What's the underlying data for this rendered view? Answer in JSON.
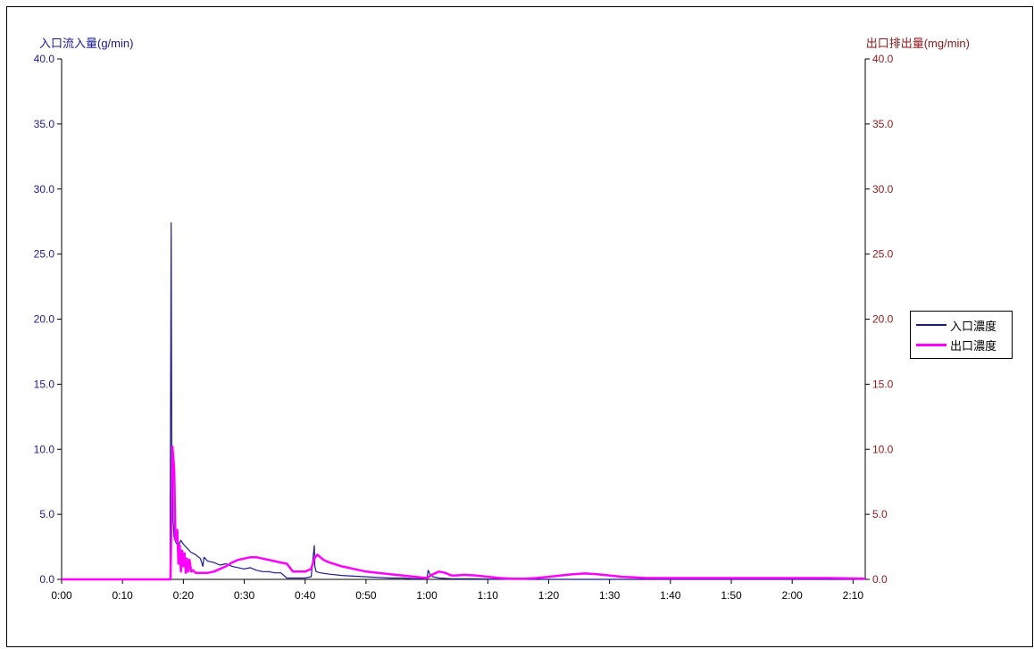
{
  "chart_data": {
    "type": "line",
    "yaxis_left": {
      "label": "入口流入量(g/min)",
      "ticks": [
        "0.0",
        "5.0",
        "10.0",
        "15.0",
        "20.0",
        "25.0",
        "30.0",
        "35.0",
        "40.0"
      ],
      "ylim": [
        0,
        40
      ]
    },
    "yaxis_right": {
      "label": "出口排出量(mg/min)",
      "ticks": [
        "0.0",
        "5.0",
        "10.0",
        "15.0",
        "20.0",
        "25.0",
        "30.0",
        "35.0",
        "40.0"
      ],
      "ylim": [
        0,
        40
      ]
    },
    "xaxis": {
      "ticks": [
        "0:00",
        "0:10",
        "0:20",
        "0:30",
        "0:40",
        "0:50",
        "1:00",
        "1:10",
        "1:20",
        "1:30",
        "1:40",
        "1:50",
        "2:00",
        "2:10"
      ],
      "xlim_minutes": [
        0,
        132
      ]
    },
    "grid": false,
    "legend_position": "right",
    "series": [
      {
        "name": "入口濃度",
        "color": "#1a1a8c",
        "axis": "left",
        "x": [
          0,
          17.8,
          18.0,
          18.1,
          18.2,
          18.3,
          18.5,
          18.8,
          19.2,
          19.6,
          20.0,
          20.6,
          21.2,
          22.0,
          22.8,
          23.2,
          23.4,
          24.0,
          25.0,
          26.0,
          27.0,
          28.0,
          29.0,
          30.0,
          31.0,
          32.0,
          33.0,
          34.0,
          35.0,
          36.0,
          37.0,
          38.0,
          39.0,
          40.0,
          41.0,
          41.5,
          41.6,
          41.8,
          42.5,
          44.0,
          46.0,
          48.0,
          50.0,
          52.0,
          54.0,
          56.0,
          58.0,
          60.0,
          60.2,
          60.5,
          61.0,
          62.0,
          64.0,
          66.0,
          68.0,
          70.0,
          72.0,
          74.0,
          76.0,
          78.0,
          80.0,
          82.0,
          85.0,
          90.0,
          95.0,
          100.0,
          110.0,
          120.0,
          132.0
        ],
        "values": [
          0.0,
          0.0,
          27.4,
          8.2,
          10.1,
          4.5,
          3.2,
          2.8,
          2.6,
          3.0,
          2.7,
          2.4,
          2.1,
          1.9,
          1.6,
          1.0,
          1.7,
          1.4,
          1.3,
          1.1,
          1.2,
          1.0,
          0.9,
          0.8,
          0.9,
          0.7,
          0.6,
          0.6,
          0.5,
          0.5,
          0.1,
          0.1,
          0.1,
          0.1,
          0.2,
          2.6,
          1.0,
          0.6,
          0.5,
          0.4,
          0.3,
          0.25,
          0.2,
          0.15,
          0.1,
          0.1,
          0.05,
          0.05,
          0.7,
          0.4,
          0.2,
          0.1,
          0.05,
          0.05,
          0.05,
          0.02,
          0.02,
          0.0,
          0.0,
          0.0,
          0.0,
          0.0,
          0.0,
          0.0,
          0.0,
          0.0,
          0.0,
          0.0,
          0.0
        ]
      },
      {
        "name": "出口濃度",
        "color": "#ff00ff",
        "axis": "right",
        "x": [
          0,
          17.9,
          18.2,
          18.5,
          18.7,
          19.0,
          19.2,
          19.4,
          19.6,
          19.8,
          20.0,
          20.2,
          20.4,
          20.6,
          20.8,
          21.0,
          21.3,
          21.6,
          22.0,
          22.5,
          23.0,
          24.0,
          25.0,
          26.0,
          27.0,
          28.0,
          29.0,
          30.0,
          31.0,
          32.0,
          33.0,
          34.0,
          35.0,
          36.0,
          37.0,
          38.0,
          39.0,
          40.0,
          41.0,
          41.5,
          42.0,
          42.5,
          43.0,
          44.0,
          46.0,
          48.0,
          50.0,
          52.0,
          54.0,
          56.0,
          58.0,
          60.0,
          61.0,
          62.0,
          63.0,
          64.0,
          65.0,
          66.0,
          68.0,
          70.0,
          72.0,
          74.0,
          76.0,
          78.0,
          80.0,
          82.0,
          84.0,
          86.0,
          88.0,
          90.0,
          92.0,
          94.0,
          96.0,
          100.0,
          110.0,
          120.0,
          126.0,
          132.0
        ],
        "values": [
          0.0,
          0.0,
          10.2,
          8.5,
          3.0,
          3.8,
          1.2,
          2.6,
          0.6,
          2.2,
          1.0,
          2.0,
          0.5,
          1.6,
          0.6,
          1.5,
          0.6,
          0.7,
          0.5,
          0.5,
          0.5,
          0.5,
          0.6,
          0.8,
          1.0,
          1.3,
          1.5,
          1.6,
          1.7,
          1.7,
          1.6,
          1.5,
          1.4,
          1.3,
          1.2,
          0.6,
          0.6,
          0.6,
          0.8,
          1.6,
          1.9,
          1.7,
          1.5,
          1.3,
          1.0,
          0.8,
          0.6,
          0.5,
          0.4,
          0.3,
          0.2,
          0.1,
          0.4,
          0.6,
          0.5,
          0.3,
          0.3,
          0.35,
          0.3,
          0.2,
          0.1,
          0.05,
          0.05,
          0.1,
          0.2,
          0.3,
          0.4,
          0.45,
          0.4,
          0.3,
          0.2,
          0.15,
          0.1,
          0.1,
          0.1,
          0.1,
          0.1,
          0.05
        ]
      }
    ]
  }
}
